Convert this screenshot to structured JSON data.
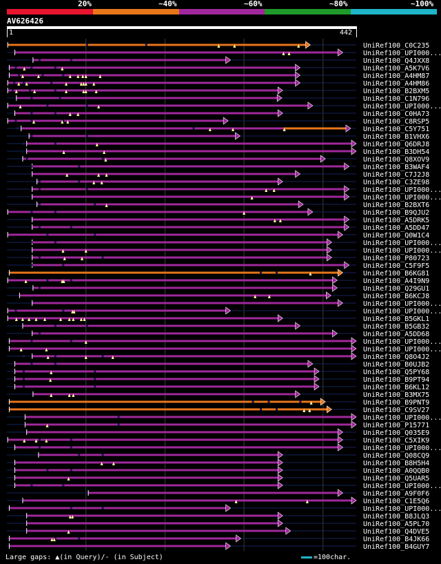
{
  "legend": [
    {
      "label": "20%",
      "color": "#e8152e"
    },
    {
      "label": "~40%",
      "color": "#e8761b"
    },
    {
      "label": "~60%",
      "color": "#a0289c"
    },
    {
      "label": "~80%",
      "color": "#1f9a2a"
    },
    {
      "label": "~100%",
      "color": "#1fb4c8"
    }
  ],
  "query": {
    "id": "AV626426",
    "start": "1",
    "end": "442",
    "length": 442
  },
  "hits": [
    {
      "name": "UniRef100_C0C235",
      "color": "#e8761b",
      "start": 1,
      "end": 384,
      "gaps": [
        268,
        288,
        369
      ],
      "ends": [
        100,
        175
      ]
    },
    {
      "name": "UniRef100_UPI000...",
      "color": "#a0289c",
      "start": 10,
      "end": 425,
      "gaps": [
        350,
        357
      ],
      "ends": []
    },
    {
      "name": "UniRef100_Q4JXX8",
      "color": "#a0289c",
      "start": 33,
      "end": 283,
      "gaps": [],
      "ends": [
        40,
        80
      ]
    },
    {
      "name": "UniRef100_A5K7V6",
      "color": "#a0289c",
      "start": 3,
      "end": 371,
      "gaps": [
        22,
        70
      ],
      "ends": [
        10,
        30,
        60
      ]
    },
    {
      "name": "UniRef100_A4HM87",
      "color": "#a0289c",
      "start": 3,
      "end": 371,
      "gaps": [
        20,
        40,
        80,
        90,
        96,
        100,
        118
      ],
      "ends": [
        14,
        44,
        70
      ]
    },
    {
      "name": "UniRef100_A4HM86",
      "color": "#a0289c",
      "start": 1,
      "end": 371,
      "gaps": [
        15,
        25,
        75,
        94,
        97,
        100,
        110
      ],
      "ends": [
        8,
        20,
        55
      ]
    },
    {
      "name": "UniRef100_B2BXM5",
      "color": "#a0289c",
      "start": 1,
      "end": 349,
      "gaps": [
        12,
        35,
        75,
        97,
        100,
        113
      ],
      "ends": [
        6,
        28,
        60
      ]
    },
    {
      "name": "UniRef100_C1N796",
      "color": "#a0289c",
      "start": 12,
      "end": 348,
      "gaps": [],
      "ends": [
        30,
        66
      ]
    },
    {
      "name": "UniRef100_UPI000...",
      "color": "#a0289c",
      "start": 1,
      "end": 387,
      "gaps": [
        17,
        116
      ],
      "ends": [
        50,
        100
      ]
    },
    {
      "name": "UniRef100_C0HA73",
      "color": "#a0289c",
      "start": 10,
      "end": 349,
      "gaps": [
        80,
        90
      ],
      "ends": [
        30,
        60
      ]
    },
    {
      "name": "UniRef100_C8RSP5",
      "color": "#a0289c",
      "start": 1,
      "end": 280,
      "gaps": [
        34,
        70,
        77
      ],
      "ends": [
        10,
        30,
        70
      ]
    },
    {
      "name": "UniRef100_C5Y751",
      "color": "#a0289c",
      "start": 18,
      "end": 435,
      "gaps": [
        257,
        286,
        351
      ],
      "ends": [
        12,
        235
      ],
      "orange": [
        [
          350,
          430
        ]
      ]
    },
    {
      "name": "UniRef100_B1VHX6",
      "color": "#a0289c",
      "start": 28,
      "end": 295,
      "gaps": [],
      "ends": [
        30,
        100
      ]
    },
    {
      "name": "UniRef100_Q6DRJ8",
      "color": "#a0289c",
      "start": 25,
      "end": 442,
      "gaps": [
        114
      ],
      "ends": [
        20,
        60
      ]
    },
    {
      "name": "UniRef100_B3DH54",
      "color": "#a0289c",
      "start": 25,
      "end": 442,
      "gaps": [
        72,
        123
      ],
      "ends": []
    },
    {
      "name": "UniRef100_Q8XOV9",
      "color": "#a0289c",
      "start": 20,
      "end": 403,
      "gaps": [
        125
      ],
      "ends": [
        24,
        120
      ]
    },
    {
      "name": "UniRef100_B3WAF4",
      "color": "#a0289c",
      "start": 32,
      "end": 433,
      "gaps": [],
      "ends": [
        30,
        90
      ]
    },
    {
      "name": "UniRef100_C7J2J8",
      "color": "#a0289c",
      "start": 32,
      "end": 371,
      "gaps": [
        76,
        116,
        126
      ],
      "ends": []
    },
    {
      "name": "UniRef100_C3ZE98",
      "color": "#a0289c",
      "start": 38,
      "end": 349,
      "gaps": [
        110,
        120
      ],
      "ends": [
        40,
        90
      ]
    },
    {
      "name": "UniRef100_UPI000...",
      "color": "#a0289c",
      "start": 32,
      "end": 433,
      "gaps": [
        328,
        338
      ],
      "ends": [
        40,
        100
      ]
    },
    {
      "name": "UniRef100_UPI000...",
      "color": "#a0289c",
      "start": 32,
      "end": 433,
      "gaps": [
        310
      ],
      "ends": []
    },
    {
      "name": "UniRef100_B2BXT6",
      "color": "#a0289c",
      "start": 38,
      "end": 375,
      "gaps": [
        126
      ],
      "ends": [
        40,
        110
      ]
    },
    {
      "name": "UniRef100_B9QJU2",
      "color": "#a0289c",
      "start": 1,
      "end": 387,
      "gaps": [
        300
      ],
      "ends": [
        30,
        60
      ]
    },
    {
      "name": "UniRef100_A5DRK5",
      "color": "#a0289c",
      "start": 32,
      "end": 433,
      "gaps": [
        339,
        346
      ],
      "ends": []
    },
    {
      "name": "UniRef100_A5DD47",
      "color": "#a0289c",
      "start": 32,
      "end": 433,
      "gaps": [],
      "ends": [
        40,
        80
      ]
    },
    {
      "name": "UniRef100_Q0W1C4",
      "color": "#a0289c",
      "start": 1,
      "end": 425,
      "gaps": [],
      "ends": [
        50,
        110
      ]
    },
    {
      "name": "UniRef100_UPI000...",
      "color": "#a0289c",
      "start": 32,
      "end": 411,
      "gaps": [],
      "ends": [
        30,
        60
      ]
    },
    {
      "name": "UniRef100_UPI000...",
      "color": "#a0289c",
      "start": 32,
      "end": 411,
      "gaps": [
        71,
        100
      ],
      "ends": []
    },
    {
      "name": "UniRef100_P80723",
      "color": "#a0289c",
      "start": 32,
      "end": 411,
      "gaps": [
        73,
        95
      ],
      "ends": [
        40,
        120
      ]
    },
    {
      "name": "UniRef100_C5F9F5",
      "color": "#a0289c",
      "start": 32,
      "end": 433,
      "gaps": [],
      "ends": [
        30,
        70
      ]
    },
    {
      "name": "UniRef100_B6KG81",
      "color": "#e8761b",
      "start": 3,
      "end": 425,
      "gaps": [
        384
      ],
      "ends": [
        320,
        340
      ]
    },
    {
      "name": "UniRef100_A4I9N9",
      "color": "#a0289c",
      "start": 1,
      "end": 418,
      "gaps": [
        24,
        70,
        72
      ],
      "ends": [
        50,
        80
      ]
    },
    {
      "name": "UniRef100_Q29GU1",
      "color": "#a0289c",
      "start": 33,
      "end": 418,
      "gaps": [],
      "ends": [
        40
      ]
    },
    {
      "name": "UniRef100_B6KCJ8",
      "color": "#a0289c",
      "start": 16,
      "end": 410,
      "gaps": [
        314,
        332
      ],
      "ends": []
    },
    {
      "name": "UniRef100_UPI000...",
      "color": "#a0289c",
      "start": 32,
      "end": 425,
      "gaps": [],
      "ends": []
    },
    {
      "name": "UniRef100_UPI000...",
      "color": "#a0289c",
      "start": 1,
      "end": 283,
      "gaps": [
        83,
        85
      ],
      "ends": [
        10,
        70
      ]
    },
    {
      "name": "UniRef100_B5GKL1",
      "color": "#a0289c",
      "start": 1,
      "end": 349,
      "gaps": [
        12,
        20,
        28,
        37,
        48,
        68,
        79,
        84,
        94,
        98
      ],
      "ends": []
    },
    {
      "name": "UniRef100_B5GB32",
      "color": "#a0289c",
      "start": 20,
      "end": 371,
      "gaps": [],
      "ends": [
        60,
        100
      ]
    },
    {
      "name": "UniRef100_A5DD68",
      "color": "#a0289c",
      "start": 32,
      "end": 418,
      "gaps": [],
      "ends": [
        40
      ]
    },
    {
      "name": "UniRef100_UPI000...",
      "color": "#a0289c",
      "start": 3,
      "end": 442,
      "gaps": [
        100
      ],
      "ends": [
        30,
        80
      ]
    },
    {
      "name": "UniRef100_UPI000...",
      "color": "#a0289c",
      "start": 3,
      "end": 442,
      "gaps": [
        18,
        50
      ],
      "ends": []
    },
    {
      "name": "UniRef100_Q8O4J2",
      "color": "#a0289c",
      "start": 32,
      "end": 442,
      "gaps": [
        52,
        100,
        134
      ],
      "ends": [
        20,
        60,
        120
      ]
    },
    {
      "name": "UniRef100_B0UJB2",
      "color": "#a0289c",
      "start": 10,
      "end": 387,
      "gaps": [],
      "ends": [
        30,
        60
      ]
    },
    {
      "name": "UniRef100_Q5PY68",
      "color": "#a0289c",
      "start": 10,
      "end": 395,
      "gaps": [
        56
      ],
      "ends": [
        20,
        110
      ]
    },
    {
      "name": "UniRef100_B9PT94",
      "color": "#a0289c",
      "start": 10,
      "end": 395,
      "gaps": [
        55
      ],
      "ends": [
        20,
        110
      ]
    },
    {
      "name": "UniRef100_B6KL12",
      "color": "#a0289c",
      "start": 10,
      "end": 395,
      "gaps": [],
      "ends": [
        20,
        110
      ]
    },
    {
      "name": "UniRef100_B3MX75",
      "color": "#a0289c",
      "start": 33,
      "end": 371,
      "gaps": [
        56,
        79,
        84
      ],
      "ends": []
    },
    {
      "name": "UniRef100_B9PNT9",
      "color": "#e8761b",
      "start": 3,
      "end": 403,
      "gaps": [
        385
      ],
      "ends": [
        310,
        330,
        370
      ]
    },
    {
      "name": "UniRef100_C9SV27",
      "color": "#e8761b",
      "start": 3,
      "end": 411,
      "gaps": [
        376,
        383
      ],
      "ends": [
        320,
        340
      ]
    },
    {
      "name": "UniRef100_UPI000...",
      "color": "#a0289c",
      "start": 23,
      "end": 442,
      "gaps": [],
      "ends": [
        140
      ]
    },
    {
      "name": "UniRef100_P15771",
      "color": "#a0289c",
      "start": 23,
      "end": 442,
      "gaps": [
        51
      ],
      "ends": [
        140
      ]
    },
    {
      "name": "UniRef100_Q035E9",
      "color": "#a0289c",
      "start": 25,
      "end": 425,
      "gaps": [],
      "ends": []
    },
    {
      "name": "UniRef100_C5XIK9",
      "color": "#a0289c",
      "start": 1,
      "end": 425,
      "gaps": [
        22,
        37,
        50
      ],
      "ends": [
        40,
        80
      ]
    },
    {
      "name": "UniRef100_UPI000...",
      "color": "#a0289c",
      "start": 10,
      "end": 425,
      "gaps": [],
      "ends": [
        40,
        80
      ]
    },
    {
      "name": "UniRef100_Q08CQ9",
      "color": "#a0289c",
      "start": 40,
      "end": 349,
      "gaps": [],
      "ends": [
        90,
        120
      ]
    },
    {
      "name": "UniRef100_B8H5H4",
      "color": "#a0289c",
      "start": 10,
      "end": 349,
      "gaps": [
        120,
        135
      ],
      "ends": []
    },
    {
      "name": "UniRef100_A0QQB0",
      "color": "#a0289c",
      "start": 10,
      "end": 349,
      "gaps": [],
      "ends": [
        50,
        80
      ]
    },
    {
      "name": "UniRef100_Q5UAR5",
      "color": "#a0289c",
      "start": 10,
      "end": 349,
      "gaps": [
        78
      ],
      "ends": []
    },
    {
      "name": "UniRef100_UPI000...",
      "color": "#a0289c",
      "start": 10,
      "end": 349,
      "gaps": [],
      "ends": [
        30,
        70
      ]
    },
    {
      "name": "UniRef100_A9F0F6",
      "color": "#a0289c",
      "start": 103,
      "end": 425,
      "gaps": [],
      "ends": []
    },
    {
      "name": "UniRef100_C1E5Q6",
      "color": "#a0289c",
      "start": 20,
      "end": 442,
      "gaps": [
        290,
        380
      ],
      "ends": []
    },
    {
      "name": "UniRef100_UPI000...",
      "color": "#a0289c",
      "start": 3,
      "end": 283,
      "gaps": [],
      "ends": [
        80,
        120
      ]
    },
    {
      "name": "UniRef100_B8JLQ3",
      "color": "#a0289c",
      "start": 25,
      "end": 349,
      "gaps": [
        80,
        83
      ],
      "ends": []
    },
    {
      "name": "UniRef100_A5PL70",
      "color": "#a0289c",
      "start": 25,
      "end": 349,
      "gaps": [],
      "ends": []
    },
    {
      "name": "UniRef100_Q4DVE5",
      "color": "#a0289c",
      "start": 25,
      "end": 359,
      "gaps": [
        78
      ],
      "ends": []
    },
    {
      "name": "UniRef100_B4JK66",
      "color": "#a0289c",
      "start": 3,
      "end": 296,
      "gaps": [
        57,
        60
      ],
      "ends": [
        60,
        90
      ]
    },
    {
      "name": "UniRef100_B4GUY7",
      "color": "#a0289c",
      "start": 3,
      "end": 283,
      "gaps": [],
      "ends": []
    }
  ],
  "footer": {
    "gaps_note": "Large gaps: ▲(in Query)/- (in Subject)",
    "scale_note": "=100char."
  }
}
